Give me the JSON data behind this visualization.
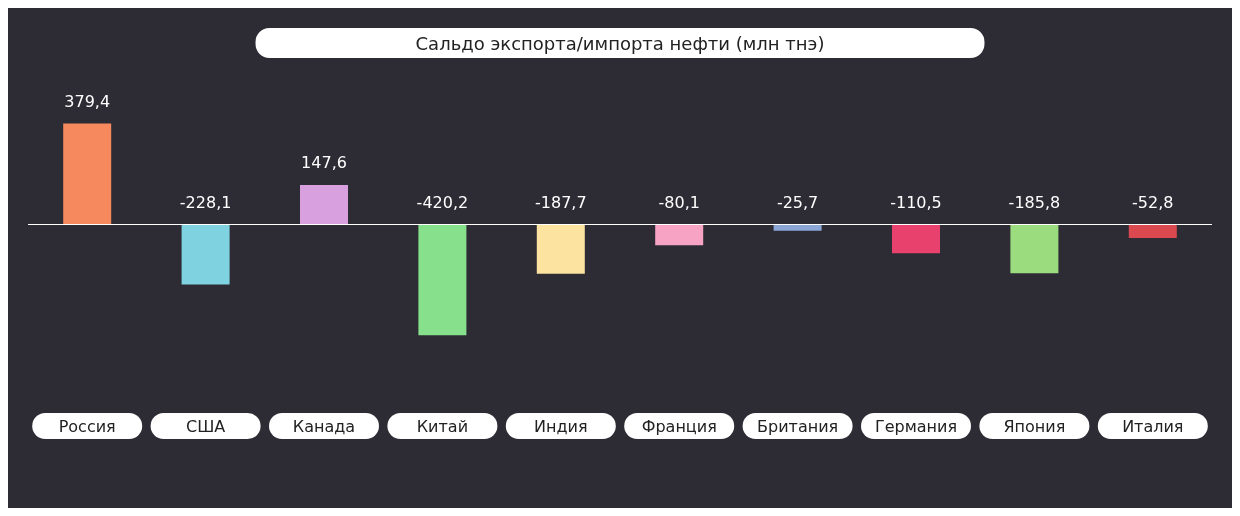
{
  "chart_data": {
    "type": "bar",
    "title": "Сальдо экспорта/импорта нефти (млн тнэ)",
    "categories": [
      "Россия",
      "США",
      "Канада",
      "Китай",
      "Индия",
      "Франция",
      "Британия",
      "Германия",
      "Япония",
      "Италия"
    ],
    "values": [
      379.4,
      -228.1,
      147.6,
      -420.2,
      -187.7,
      -80.1,
      -25.7,
      -110.5,
      -185.8,
      -52.8
    ],
    "value_labels": [
      "379,4",
      "-228,1",
      "147,6",
      "-420,2",
      "-187,7",
      "-80,1",
      "-25,7",
      "-110,5",
      "-185,8",
      "-52,8"
    ],
    "colors": [
      "#f68a5e",
      "#7fd3e0",
      "#d9a0e0",
      "#86e08c",
      "#fde3a0",
      "#f7a3c3",
      "#8aa6d6",
      "#e8416e",
      "#9bdc7e",
      "#d9494f"
    ]
  }
}
